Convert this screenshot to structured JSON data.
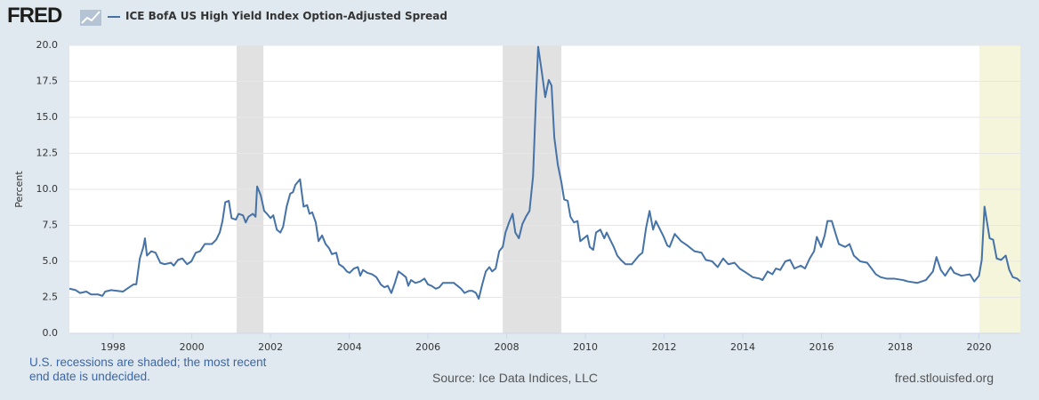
{
  "logo": "FRED",
  "chart_data": {
    "type": "line",
    "y_label": "Percent",
    "x": [
      1996.89,
      1997.05,
      1997.16,
      1997.32,
      1997.44,
      1997.62,
      1997.73,
      1997.8,
      1997.95,
      1998.11,
      1998.25,
      1998.41,
      1998.52,
      1998.59,
      1998.68,
      1998.77,
      1998.81,
      1998.86,
      1998.97,
      1999.08,
      1999.2,
      1999.31,
      1999.47,
      1999.54,
      1999.65,
      1999.76,
      1999.88,
      1999.99,
      2000.1,
      2000.21,
      2000.33,
      2000.51,
      2000.62,
      2000.71,
      2000.78,
      2000.85,
      2000.94,
      2001.01,
      2001.12,
      2001.19,
      2001.3,
      2001.37,
      2001.44,
      2001.55,
      2001.62,
      2001.66,
      2001.75,
      2001.84,
      2001.91,
      2002.0,
      2002.07,
      2002.16,
      2002.25,
      2002.32,
      2002.41,
      2002.5,
      2002.57,
      2002.63,
      2002.75,
      2002.84,
      2002.93,
      2002.99,
      2003.06,
      2003.15,
      2003.22,
      2003.31,
      2003.4,
      2003.49,
      2003.56,
      2003.67,
      2003.74,
      2003.85,
      2003.94,
      2004.01,
      2004.12,
      2004.22,
      2004.28,
      2004.35,
      2004.46,
      2004.58,
      2004.69,
      2004.8,
      2004.89,
      2004.98,
      2005.07,
      2005.16,
      2005.25,
      2005.35,
      2005.44,
      2005.5,
      2005.57,
      2005.68,
      2005.8,
      2005.91,
      2006.0,
      2006.09,
      2006.2,
      2006.29,
      2006.38,
      2006.54,
      2006.66,
      2006.75,
      2006.84,
      2006.93,
      2007.04,
      2007.13,
      2007.22,
      2007.29,
      2007.38,
      2007.47,
      2007.56,
      2007.63,
      2007.72,
      2007.81,
      2007.9,
      2007.97,
      2008.06,
      2008.15,
      2008.22,
      2008.31,
      2008.4,
      2008.49,
      2008.58,
      2008.67,
      2008.74,
      2008.8,
      2008.89,
      2008.98,
      2009.07,
      2009.14,
      2009.21,
      2009.3,
      2009.39,
      2009.46,
      2009.55,
      2009.62,
      2009.71,
      2009.8,
      2009.87,
      2009.96,
      2010.05,
      2010.11,
      2010.2,
      2010.27,
      2010.38,
      2010.48,
      2010.54,
      2010.63,
      2010.72,
      2010.81,
      2010.9,
      2011.02,
      2011.18,
      2011.27,
      2011.36,
      2011.45,
      2011.54,
      2011.63,
      2011.72,
      2011.79,
      2011.88,
      2011.99,
      2012.08,
      2012.14,
      2012.27,
      2012.43,
      2012.59,
      2012.77,
      2012.95,
      2013.06,
      2013.22,
      2013.36,
      2013.5,
      2013.63,
      2013.79,
      2013.92,
      2014.09,
      2014.25,
      2014.43,
      2014.5,
      2014.63,
      2014.75,
      2014.84,
      2014.95,
      2015.08,
      2015.2,
      2015.31,
      2015.47,
      2015.58,
      2015.7,
      2015.81,
      2015.88,
      2015.99,
      2016.08,
      2016.15,
      2016.26,
      2016.37,
      2016.44,
      2016.6,
      2016.71,
      2016.82,
      2016.98,
      2017.16,
      2017.38,
      2017.5,
      2017.65,
      2017.84,
      2018.07,
      2018.2,
      2018.43,
      2018.65,
      2018.83,
      2018.92,
      2019.03,
      2019.14,
      2019.28,
      2019.37,
      2019.55,
      2019.77,
      2019.88,
      2020.0,
      2020.07,
      2020.14,
      2020.27,
      2020.36,
      2020.45,
      2020.56,
      2020.68,
      2020.77,
      2020.86,
      2020.97,
      2021.05
    ],
    "series": [
      {
        "name": "ICE BofA US High Yield Index Option-Adjusted Spread",
        "color": "#4572a7",
        "values": [
          3.1,
          3.0,
          2.8,
          2.9,
          2.7,
          2.7,
          2.6,
          2.9,
          3.0,
          2.95,
          2.9,
          3.2,
          3.4,
          3.4,
          5.2,
          6.0,
          6.6,
          5.4,
          5.7,
          5.6,
          4.9,
          4.8,
          4.9,
          4.7,
          5.1,
          5.2,
          4.8,
          5.0,
          5.6,
          5.7,
          6.2,
          6.2,
          6.5,
          7.0,
          7.8,
          9.1,
          9.2,
          8.0,
          7.9,
          8.3,
          8.2,
          7.7,
          8.1,
          8.3,
          8.1,
          10.2,
          9.6,
          8.5,
          8.3,
          8.0,
          8.2,
          7.2,
          7.0,
          7.4,
          8.8,
          9.7,
          9.8,
          10.3,
          10.7,
          8.8,
          8.9,
          8.3,
          8.4,
          7.7,
          6.4,
          6.8,
          6.2,
          5.9,
          5.5,
          5.6,
          4.8,
          4.6,
          4.3,
          4.2,
          4.5,
          4.6,
          4.0,
          4.4,
          4.2,
          4.1,
          3.9,
          3.4,
          3.2,
          3.3,
          2.8,
          3.5,
          4.3,
          4.1,
          3.9,
          3.3,
          3.7,
          3.5,
          3.6,
          3.8,
          3.4,
          3.3,
          3.1,
          3.2,
          3.5,
          3.5,
          3.5,
          3.3,
          3.1,
          2.8,
          2.95,
          2.95,
          2.8,
          2.4,
          3.4,
          4.3,
          4.6,
          4.3,
          4.5,
          5.7,
          6.0,
          7.0,
          7.7,
          8.3,
          7.0,
          6.6,
          7.6,
          8.1,
          8.5,
          10.9,
          16.0,
          19.9,
          18.2,
          16.4,
          17.6,
          17.2,
          13.6,
          11.7,
          10.5,
          9.3,
          9.2,
          8.1,
          7.7,
          7.8,
          6.4,
          6.6,
          6.8,
          6.0,
          5.8,
          7.0,
          7.2,
          6.6,
          7.0,
          6.5,
          6.0,
          5.4,
          5.1,
          4.8,
          4.8,
          5.1,
          5.4,
          5.6,
          7.3,
          8.5,
          7.2,
          7.8,
          7.3,
          6.7,
          6.1,
          6.0,
          6.9,
          6.4,
          6.1,
          5.7,
          5.6,
          5.1,
          5.0,
          4.6,
          5.2,
          4.8,
          4.9,
          4.5,
          4.2,
          3.9,
          3.8,
          3.7,
          4.3,
          4.1,
          4.5,
          4.4,
          5.0,
          5.1,
          4.5,
          4.7,
          4.5,
          5.2,
          5.7,
          6.7,
          6.0,
          6.8,
          7.8,
          7.8,
          6.8,
          6.2,
          6.0,
          6.2,
          5.4,
          5.0,
          4.9,
          4.1,
          3.9,
          3.8,
          3.8,
          3.7,
          3.6,
          3.5,
          3.7,
          4.3,
          5.3,
          4.4,
          4.0,
          4.6,
          4.2,
          4.0,
          4.1,
          3.6,
          4.0,
          5.1,
          8.8,
          6.6,
          6.5,
          5.2,
          5.1,
          5.4,
          4.4,
          3.9,
          3.8,
          3.6
        ]
      }
    ],
    "xlim": [
      1996.89,
      2021.05
    ],
    "xticks": [
      1998,
      2000,
      2002,
      2004,
      2006,
      2008,
      2010,
      2012,
      2014,
      2016,
      2018,
      2020
    ],
    "ylim": [
      0,
      20
    ],
    "yticks": [
      {
        "value": 0,
        "label": "0.0"
      },
      2.5,
      {
        "value": 5,
        "label": "5.0"
      },
      7.5,
      {
        "value": 10,
        "label": "10.0"
      },
      12.5,
      {
        "value": 15,
        "label": "15.0"
      },
      17.5,
      {
        "value": 20,
        "label": "20.0"
      }
    ],
    "grid": true,
    "recessions": [
      {
        "start": 2001.14,
        "end": 2001.82,
        "color": "#e1e1e1"
      },
      {
        "start": 2007.9,
        "end": 2009.39,
        "color": "#e1e1e1"
      },
      {
        "start": 2020.01,
        "end": 2021.05,
        "color": "#f5f5dc"
      }
    ],
    "note": "U.S. recessions are shaded; the most recent end date is undecided.",
    "source": "Source: Ice Data Indices, LLC",
    "url": "fred.stlouisfed.org"
  }
}
